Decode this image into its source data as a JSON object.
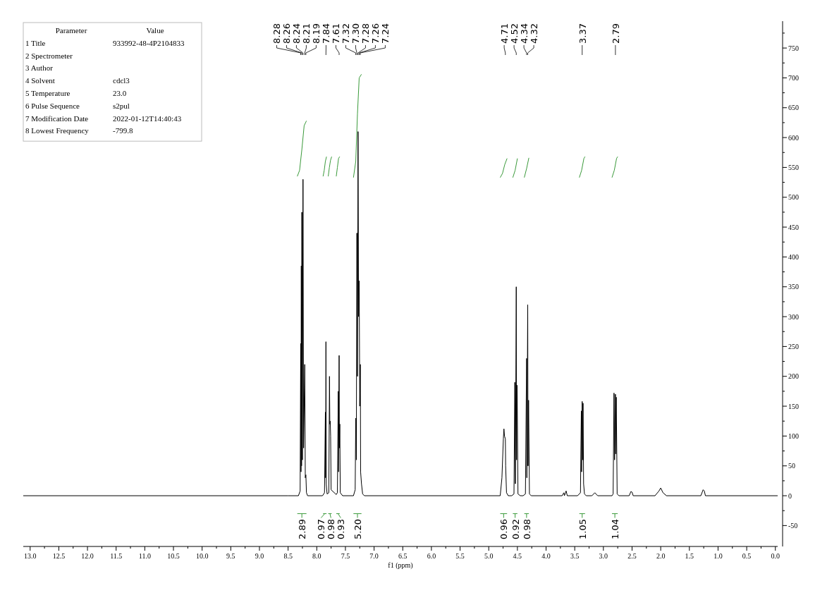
{
  "chart_data": [
    {
      "type": "line",
      "xlabel": "f1 (ppm)",
      "xlim": [
        13.12,
        -0.04
      ],
      "ylim": [
        -85,
        795
      ],
      "xticks": [
        {
          "value": 13,
          "label": "13.0"
        },
        {
          "value": 12.75,
          "label": null
        },
        {
          "value": 12.5,
          "label": "12.5"
        },
        {
          "value": 12.25,
          "label": null
        },
        {
          "value": 12,
          "label": "12.0"
        },
        {
          "value": 11.75,
          "label": null
        },
        {
          "value": 11.5,
          "label": "11.5"
        },
        {
          "value": 11.25,
          "label": null
        },
        {
          "value": 11,
          "label": "11.0"
        },
        {
          "value": 10.75,
          "label": null
        },
        {
          "value": 10.5,
          "label": "10.5"
        },
        {
          "value": 10.25,
          "label": null
        },
        {
          "value": 10,
          "label": "10.0"
        },
        {
          "value": 9.75,
          "label": null
        },
        {
          "value": 9.5,
          "label": "9.5"
        },
        {
          "value": 9.25,
          "label": null
        },
        {
          "value": 9,
          "label": "9.0"
        },
        {
          "value": 8.75,
          "label": null
        },
        {
          "value": 8.5,
          "label": "8.5"
        },
        {
          "value": 8.25,
          "label": null
        },
        {
          "value": 8,
          "label": "8.0"
        },
        {
          "value": 7.75,
          "label": null
        },
        {
          "value": 7.5,
          "label": "7.5"
        },
        {
          "value": 7.25,
          "label": null
        },
        {
          "value": 7,
          "label": "7.0"
        },
        {
          "value": 6.75,
          "label": null
        },
        {
          "value": 6.5,
          "label": "6.5"
        },
        {
          "value": 6.25,
          "label": null
        },
        {
          "value": 6,
          "label": "6.0"
        },
        {
          "value": 5.75,
          "label": null
        },
        {
          "value": 5.5,
          "label": "5.5"
        },
        {
          "value": 5.25,
          "label": null
        },
        {
          "value": 5,
          "label": "5.0"
        },
        {
          "value": 4.75,
          "label": null
        },
        {
          "value": 4.5,
          "label": "4.5"
        },
        {
          "value": 4.25,
          "label": null
        },
        {
          "value": 4,
          "label": "4.0"
        },
        {
          "value": 3.75,
          "label": null
        },
        {
          "value": 3.5,
          "label": "3.5"
        },
        {
          "value": 3.25,
          "label": null
        },
        {
          "value": 3,
          "label": "3.0"
        },
        {
          "value": 2.75,
          "label": null
        },
        {
          "value": 2.5,
          "label": "2.5"
        },
        {
          "value": 2.25,
          "label": null
        },
        {
          "value": 2,
          "label": "2.0"
        },
        {
          "value": 1.75,
          "label": null
        },
        {
          "value": 1.5,
          "label": "1.5"
        },
        {
          "value": 1.25,
          "label": null
        },
        {
          "value": 1,
          "label": "1.0"
        },
        {
          "value": 0.75,
          "label": null
        },
        {
          "value": 0.5,
          "label": "0.5"
        },
        {
          "value": 0.25,
          "label": null
        },
        {
          "value": 0,
          "label": "0.0"
        }
      ],
      "yticks": [
        -50,
        {
          "value": -25,
          "label": null
        },
        0,
        {
          "value": 25,
          "label": null
        },
        50,
        {
          "value": 75,
          "label": null
        },
        100,
        {
          "value": 125,
          "label": null
        },
        150,
        {
          "value": 175,
          "label": null
        },
        200,
        {
          "value": 225,
          "label": null
        },
        250,
        {
          "value": 275,
          "label": null
        },
        300,
        {
          "value": 325,
          "label": null
        },
        350,
        {
          "value": 375,
          "label": null
        },
        400,
        {
          "value": 425,
          "label": null
        },
        450,
        {
          "value": 475,
          "label": null
        },
        500,
        {
          "value": 525,
          "label": null
        },
        550,
        {
          "value": 575,
          "label": null
        },
        600,
        {
          "value": 625,
          "label": null
        },
        650,
        {
          "value": 675,
          "label": null
        },
        700,
        {
          "value": 725,
          "label": null
        },
        750,
        {
          "value": 775,
          "label": null
        }
      ],
      "series": [
        {
          "type": "line",
          "color": "#000000",
          "x": [
            13.12,
            8.5,
            8.32,
            8.29,
            8.28,
            8.275,
            8.27,
            8.265,
            8.26,
            8.25,
            8.24,
            8.23,
            8.21,
            8.2,
            8.19,
            8.18,
            8.16,
            7.9,
            7.865,
            7.85,
            7.845,
            7.84,
            7.835,
            7.82,
            7.79,
            7.778,
            7.772,
            7.765,
            7.758,
            7.75,
            7.66,
            7.64,
            7.625,
            7.62,
            7.61,
            7.605,
            7.598,
            7.59,
            7.55,
            7.36,
            7.33,
            7.32,
            7.31,
            7.3,
            7.29,
            7.28,
            7.27,
            7.26,
            7.25,
            7.24,
            7.235,
            7.22,
            7.2,
            7.17,
            4.8,
            4.77,
            4.745,
            4.735,
            4.725,
            4.71,
            4.705,
            4.69,
            4.66,
            4.6,
            4.56,
            4.545,
            4.535,
            4.52,
            4.515,
            4.505,
            4.49,
            4.45,
            4.4,
            4.36,
            4.34,
            4.335,
            4.32,
            4.315,
            4.305,
            4.29,
            4.26,
            3.72,
            3.69,
            3.68,
            3.65,
            3.63,
            3.45,
            3.4,
            3.385,
            3.38,
            3.37,
            3.36,
            3.355,
            3.345,
            3.33,
            3.3,
            3.2,
            3.15,
            3.1,
            2.85,
            2.83,
            2.815,
            2.805,
            2.79,
            2.785,
            2.775,
            2.76,
            2.73,
            2.55,
            2.52,
            2.5,
            2.48,
            2.1,
            2.03,
            2.0,
            1.96,
            1.9,
            1.3,
            1.26,
            1.24,
            1.22,
            -0.04
          ],
          "values": [
            0,
            0,
            0,
            8,
            255,
            40,
            385,
            50,
            475,
            60,
            530,
            80,
            220,
            30,
            35,
            5,
            0,
            0,
            5,
            140,
            30,
            258,
            20,
            3,
            5,
            200,
            120,
            125,
            100,
            10,
            2,
            5,
            175,
            40,
            235,
            80,
            120,
            5,
            0,
            0,
            10,
            130,
            60,
            440,
            200,
            610,
            300,
            360,
            150,
            220,
            40,
            20,
            3,
            0,
            0,
            30,
            95,
            112,
            100,
            95,
            50,
            5,
            0,
            0,
            3,
            190,
            20,
            350,
            60,
            185,
            3,
            0,
            0,
            3,
            230,
            30,
            320,
            50,
            160,
            3,
            0,
            0,
            5,
            0,
            8,
            0,
            0,
            5,
            142,
            40,
            158,
            60,
            155,
            20,
            3,
            0,
            0,
            5,
            0,
            0,
            3,
            172,
            60,
            170,
            70,
            165,
            3,
            0,
            0,
            7,
            6,
            0,
            0,
            8,
            13,
            5,
            0,
            0,
            10,
            8,
            0,
            0
          ],
          "marker": "none"
        },
        {
          "type": "line",
          "color": "#3a9a3a",
          "x": [
            8.34,
            8.3,
            8.26,
            8.22,
            8.18
          ],
          "values": [
            535,
            545,
            580,
            620,
            628
          ]
        },
        {
          "type": "line",
          "color": "#3a9a3a",
          "x": [
            7.89,
            7.87,
            7.85,
            7.83
          ],
          "values": [
            535,
            545,
            560,
            568
          ]
        },
        {
          "type": "line",
          "color": "#3a9a3a",
          "x": [
            7.8,
            7.78,
            7.76,
            7.74
          ],
          "values": [
            535,
            550,
            562,
            568
          ]
        },
        {
          "type": "line",
          "color": "#3a9a3a",
          "x": [
            7.66,
            7.64,
            7.62,
            7.6
          ],
          "values": [
            535,
            550,
            565,
            568
          ]
        },
        {
          "type": "line",
          "color": "#3a9a3a",
          "x": [
            7.36,
            7.32,
            7.29,
            7.26,
            7.22
          ],
          "values": [
            533,
            560,
            640,
            700,
            706
          ]
        },
        {
          "type": "line",
          "color": "#3a9a3a",
          "x": [
            4.8,
            4.76,
            4.72,
            4.68
          ],
          "values": [
            533,
            540,
            555,
            565
          ]
        },
        {
          "type": "line",
          "color": "#3a9a3a",
          "x": [
            4.58,
            4.54,
            4.5
          ],
          "values": [
            533,
            545,
            565
          ]
        },
        {
          "type": "line",
          "color": "#3a9a3a",
          "x": [
            4.38,
            4.34,
            4.3
          ],
          "values": [
            533,
            548,
            566
          ]
        },
        {
          "type": "line",
          "color": "#3a9a3a",
          "x": [
            3.42,
            3.38,
            3.34,
            3.32
          ],
          "values": [
            533,
            545,
            565,
            568
          ]
        },
        {
          "type": "line",
          "color": "#3a9a3a",
          "x": [
            2.85,
            2.81,
            2.77,
            2.75
          ],
          "values": [
            533,
            545,
            565,
            568
          ]
        },
        {
          "type": "line",
          "color": "#3a9a3a",
          "x": [
            8.34,
            8.18
          ],
          "values": [
            -30,
            -30
          ]
        },
        {
          "type": "line",
          "color": "#3a9a3a",
          "x": [
            7.89,
            7.83
          ],
          "values": [
            -30,
            -30
          ]
        },
        {
          "type": "line",
          "color": "#3a9a3a",
          "x": [
            7.8,
            7.74
          ],
          "values": [
            -30,
            -30
          ]
        },
        {
          "type": "line",
          "color": "#3a9a3a",
          "x": [
            7.66,
            7.6
          ],
          "values": [
            -30,
            -30
          ]
        },
        {
          "type": "line",
          "color": "#3a9a3a",
          "x": [
            7.36,
            7.22
          ],
          "values": [
            -30,
            -30
          ]
        },
        {
          "type": "line",
          "color": "#3a9a3a",
          "x": [
            4.8,
            4.68
          ],
          "values": [
            -30,
            -30
          ]
        },
        {
          "type": "line",
          "color": "#3a9a3a",
          "x": [
            4.58,
            4.5
          ],
          "values": [
            -30,
            -30
          ]
        },
        {
          "type": "line",
          "color": "#3a9a3a",
          "x": [
            4.38,
            4.3
          ],
          "values": [
            -30,
            -30
          ]
        },
        {
          "type": "line",
          "color": "#3a9a3a",
          "x": [
            3.42,
            3.32
          ],
          "values": [
            -30,
            -30
          ]
        },
        {
          "type": "line",
          "color": "#3a9a3a",
          "x": [
            2.85,
            2.75
          ],
          "values": [
            -30,
            -30
          ]
        }
      ],
      "annotations": [
        {
          "text": "8.28",
          "x": 8.28
        },
        {
          "text": "8.26",
          "x": 8.26
        },
        {
          "text": "8.24",
          "x": 8.24
        },
        {
          "text": "8.21",
          "x": 8.21
        },
        {
          "text": "8.19",
          "x": 8.19
        },
        {
          "text": "7.84",
          "x": 7.84
        },
        {
          "text": "7.61",
          "x": 7.61
        },
        {
          "text": "7.32",
          "x": 7.32
        },
        {
          "text": "7.30",
          "x": 7.3
        },
        {
          "text": "7.28",
          "x": 7.28
        },
        {
          "text": "7.26",
          "x": 7.26
        },
        {
          "text": "7.24",
          "x": 7.24
        },
        {
          "text": "4.71",
          "x": 4.71
        },
        {
          "text": "4.52",
          "x": 4.52
        },
        {
          "text": "4.34",
          "x": 4.34
        },
        {
          "text": "4.32",
          "x": 4.32
        },
        {
          "text": "3.37",
          "x": 3.37
        },
        {
          "text": "2.79",
          "x": 2.79
        },
        {
          "text": "2.89",
          "x": 8.26,
          "y": -30
        },
        {
          "text": "0.97",
          "x": 7.86,
          "y": -30
        },
        {
          "text": "0.98",
          "x": 7.77,
          "y": -30
        },
        {
          "text": "0.93",
          "x": 7.63,
          "y": -30
        },
        {
          "text": "5.20",
          "x": 7.29,
          "y": -30
        },
        {
          "text": "0.96",
          "x": 4.74,
          "y": -30
        },
        {
          "text": "0.92",
          "x": 4.54,
          "y": -30
        },
        {
          "text": "0.98",
          "x": 4.34,
          "y": -30
        },
        {
          "text": "1.05",
          "x": 3.37,
          "y": -30
        },
        {
          "text": "1.04",
          "x": 2.8,
          "y": -30
        }
      ]
    },
    {
      "type": "other",
      "categories": [
        "Parameter",
        "Value"
      ],
      "y_categories": [
        "1 Title",
        "2 Spectrometer",
        "3 Author",
        "4 Solvent",
        "5 Temperature",
        "6 Pulse Sequence",
        "7 Modification Date",
        "8 Lowest Frequency"
      ],
      "y2_categories": [
        "933992-48-4P2104833",
        null,
        null,
        "cdcl3",
        "23.0",
        "s2pul",
        "2022-01-12T14:40:43",
        "-799.8"
      ]
    }
  ]
}
